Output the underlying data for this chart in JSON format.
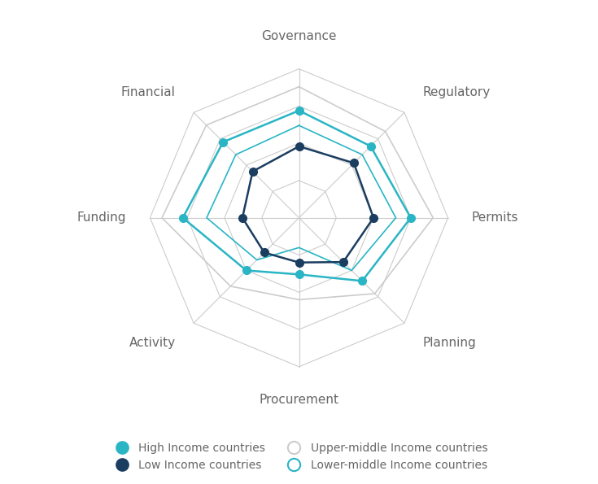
{
  "categories": [
    "Governance",
    "Regulatory",
    "Permits",
    "Planning",
    "Procurement",
    "Activity",
    "Funding",
    "Financial"
  ],
  "series": {
    "High Income countries": {
      "values": [
        0.72,
        0.68,
        0.75,
        0.6,
        0.38,
        0.5,
        0.78,
        0.72
      ],
      "color": "#2ab5c5",
      "filled": true,
      "linewidth": 1.8,
      "markersize": 7,
      "zorder": 4
    },
    "Low Income countries": {
      "values": [
        0.48,
        0.52,
        0.5,
        0.42,
        0.3,
        0.33,
        0.38,
        0.44
      ],
      "color": "#1b3d5f",
      "filled": true,
      "linewidth": 1.8,
      "markersize": 7,
      "zorder": 5
    },
    "Upper-middle Income countries": {
      "values": [
        0.88,
        0.82,
        0.9,
        0.72,
        0.55,
        0.65,
        0.92,
        0.88
      ],
      "color": "#cccccc",
      "filled": false,
      "linewidth": 1.2,
      "markersize": 0,
      "zorder": 2
    },
    "Lower-middle Income countries": {
      "values": [
        0.62,
        0.6,
        0.65,
        0.5,
        0.2,
        0.4,
        0.62,
        0.6
      ],
      "color": "#2ab5c5",
      "filled": false,
      "linewidth": 1.2,
      "markersize": 0,
      "zorder": 3
    }
  },
  "n_rings": 4,
  "ring_color": "#cccccc",
  "spoke_color": "#cccccc",
  "bg_color": "#ffffff",
  "label_color": "#666666",
  "label_fontsize": 11,
  "legend_fontsize": 10,
  "figsize": [
    7.35,
    5.95
  ],
  "dpi": 100
}
